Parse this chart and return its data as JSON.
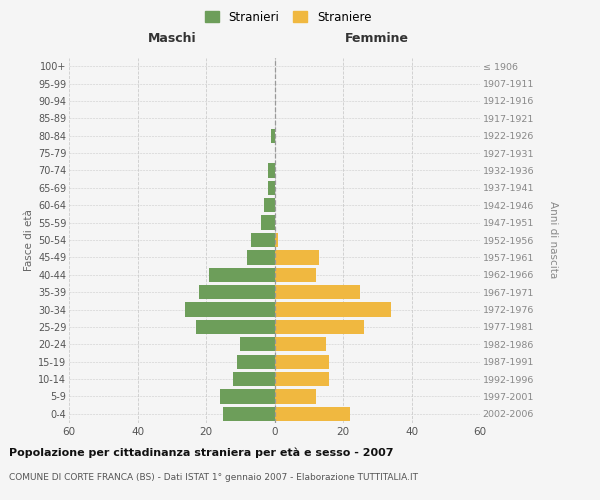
{
  "age_groups": [
    "0-4",
    "5-9",
    "10-14",
    "15-19",
    "20-24",
    "25-29",
    "30-34",
    "35-39",
    "40-44",
    "45-49",
    "50-54",
    "55-59",
    "60-64",
    "65-69",
    "70-74",
    "75-79",
    "80-84",
    "85-89",
    "90-94",
    "95-99",
    "100+"
  ],
  "birth_years": [
    "2002-2006",
    "1997-2001",
    "1992-1996",
    "1987-1991",
    "1982-1986",
    "1977-1981",
    "1972-1976",
    "1967-1971",
    "1962-1966",
    "1957-1961",
    "1952-1956",
    "1947-1951",
    "1942-1946",
    "1937-1941",
    "1932-1936",
    "1927-1931",
    "1922-1926",
    "1917-1921",
    "1912-1916",
    "1907-1911",
    "≤ 1906"
  ],
  "males": [
    15,
    16,
    12,
    11,
    10,
    23,
    26,
    22,
    19,
    8,
    7,
    4,
    3,
    2,
    2,
    0,
    1,
    0,
    0,
    0,
    0
  ],
  "females": [
    22,
    12,
    16,
    16,
    15,
    26,
    34,
    25,
    12,
    13,
    1,
    0,
    0,
    0,
    0,
    0,
    0,
    0,
    0,
    0,
    0
  ],
  "male_color": "#6d9e5a",
  "female_color": "#f0b840",
  "male_label": "Stranieri",
  "female_label": "Straniere",
  "title": "Popolazione per cittadinanza straniera per età e sesso - 2007",
  "subtitle": "COMUNE DI CORTE FRANCA (BS) - Dati ISTAT 1° gennaio 2007 - Elaborazione TUTTITALIA.IT",
  "xlabel_left": "Maschi",
  "xlabel_right": "Femmine",
  "ylabel_left": "Fasce di età",
  "ylabel_right": "Anni di nascita",
  "xlim": 60,
  "bg_color": "#f5f5f5",
  "grid_color": "#cccccc"
}
